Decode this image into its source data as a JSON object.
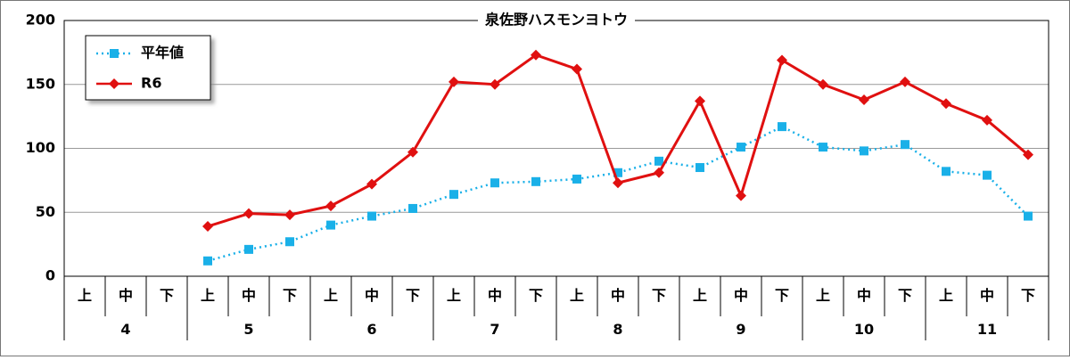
{
  "chart_data": {
    "type": "line",
    "title": "泉佐野ハスモンヨトウ",
    "categories": [
      "上",
      "中",
      "下",
      "上",
      "中",
      "下",
      "上",
      "中",
      "下",
      "上",
      "中",
      "下",
      "上",
      "中",
      "下",
      "上",
      "中",
      "下",
      "上",
      "中",
      "下",
      "上",
      "中",
      "下"
    ],
    "months": [
      "4",
      "5",
      "6",
      "7",
      "8",
      "9",
      "10",
      "11"
    ],
    "series": [
      {
        "name": "平年値",
        "color": "#1ab0e8",
        "marker": "square",
        "dash": "dotted",
        "values": [
          null,
          null,
          null,
          12,
          21,
          27,
          40,
          47,
          53,
          64,
          73,
          74,
          76,
          81,
          90,
          85,
          101,
          117,
          101,
          98,
          103,
          82,
          79,
          47
        ]
      },
      {
        "name": "R6",
        "color": "#e01010",
        "marker": "diamond",
        "dash": "solid",
        "values": [
          null,
          null,
          null,
          39,
          49,
          48,
          55,
          72,
          97,
          152,
          150,
          173,
          162,
          73,
          81,
          137,
          63,
          169,
          150,
          138,
          152,
          135,
          122,
          95
        ]
      }
    ],
    "ylim": [
      0,
      200
    ],
    "yticks": [
      0,
      50,
      100,
      150,
      200
    ],
    "grid": true,
    "legend": "top-left"
  }
}
